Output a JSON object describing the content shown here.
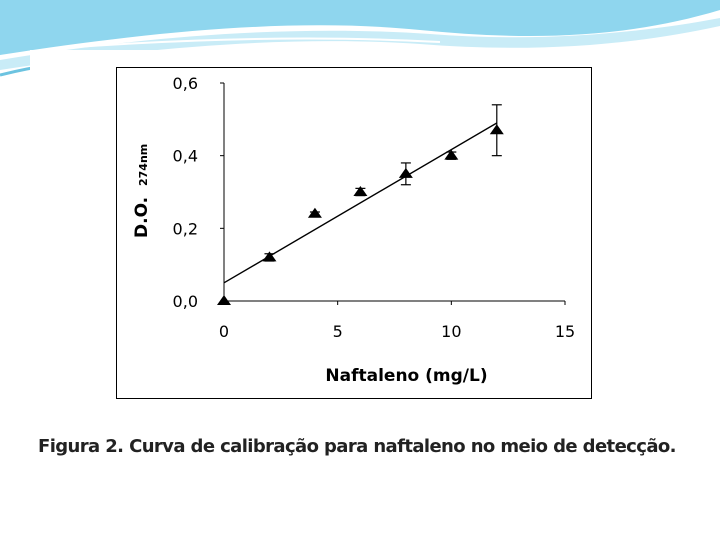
{
  "caption": "Figura 2. Curva de calibração para naftaleno no meio de detecção.",
  "colors": {
    "header_wave": "#6cc3e0",
    "header_light": "#c9ecf7",
    "marker": "#000000"
  },
  "chart_data": {
    "type": "scatter",
    "xlabel": "Naftaleno (mg/L)",
    "ylabel": "D.O.",
    "ylabel_subscript": "274nm",
    "xlim": [
      0,
      15
    ],
    "ylim": [
      0,
      0.6
    ],
    "xticks": [
      0,
      5,
      10,
      15
    ],
    "xtick_labels": [
      "0",
      "5",
      "10",
      "15"
    ],
    "yticks": [
      0,
      0.2,
      0.4,
      0.6
    ],
    "ytick_labels": [
      "0,0",
      "0,2",
      "0,4",
      "0,6"
    ],
    "grid": false,
    "legend": "none",
    "marker": "triangle",
    "series": [
      {
        "x": [
          0,
          2,
          4,
          6,
          8,
          10,
          12
        ],
        "y": [
          0.0,
          0.12,
          0.24,
          0.3,
          0.35,
          0.4,
          0.47
        ],
        "error": [
          0.0,
          0.01,
          0.005,
          0.01,
          0.03,
          0.01,
          0.07
        ]
      }
    ],
    "fit_line": {
      "x": [
        0,
        12
      ],
      "y": [
        0.05,
        0.49
      ]
    }
  }
}
